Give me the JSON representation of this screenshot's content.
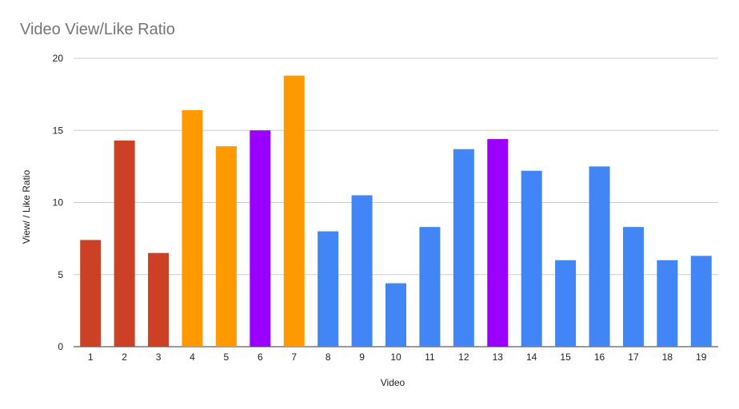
{
  "chart_data": {
    "type": "bar",
    "title": "Video View/Like Ratio",
    "xlabel": "Video",
    "ylabel": "View/ / Like Ratio",
    "categories": [
      "1",
      "2",
      "3",
      "4",
      "5",
      "6",
      "7",
      "8",
      "9",
      "10",
      "11",
      "12",
      "13",
      "14",
      "15",
      "16",
      "17",
      "18",
      "19"
    ],
    "values": [
      7.4,
      14.3,
      6.5,
      16.4,
      13.9,
      15.0,
      18.8,
      8.0,
      10.5,
      4.4,
      8.3,
      13.7,
      14.4,
      12.2,
      6.0,
      12.5,
      8.3,
      6.0,
      6.3
    ],
    "colors": [
      "#cc4125",
      "#cc4125",
      "#cc4125",
      "#ff9900",
      "#ff9900",
      "#9900ff",
      "#ff9900",
      "#4285f4",
      "#4285f4",
      "#4285f4",
      "#4285f4",
      "#4285f4",
      "#9900ff",
      "#4285f4",
      "#4285f4",
      "#4285f4",
      "#4285f4",
      "#4285f4",
      "#4285f4"
    ],
    "ylim": [
      0,
      20
    ],
    "yticks": [
      "0",
      "5",
      "10",
      "15",
      "20"
    ],
    "grid": true,
    "legend": "none"
  }
}
